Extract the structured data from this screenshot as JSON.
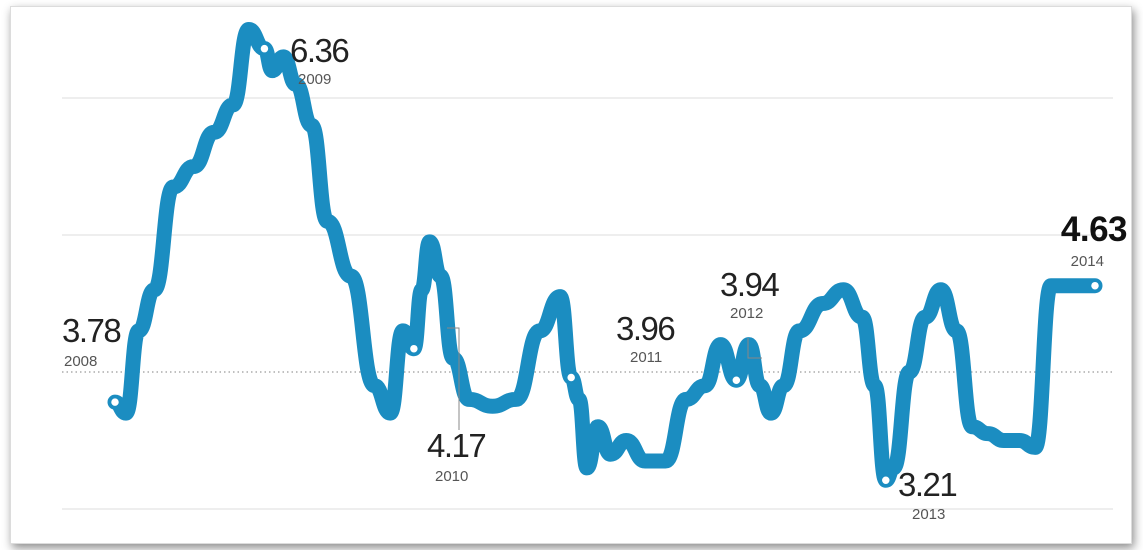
{
  "colors": {
    "line": "#1b8dc1",
    "grid": "#e3e3e3",
    "baseline": "#9a9a9a",
    "marker_fill": "#ffffff"
  },
  "chart_data": {
    "type": "line",
    "title": "",
    "xlabel": "",
    "ylabel": "",
    "grid": true,
    "y_gridlines": [
      6,
      5,
      3
    ],
    "reference_line": 4,
    "ylim": [
      2.5,
      6.6
    ],
    "xlim": [
      2008.0,
      2014.9
    ],
    "x": [
      2008.05,
      2008.12,
      2008.2,
      2008.3,
      2008.42,
      2008.55,
      2008.68,
      2008.8,
      2008.9,
      2009.0,
      2009.05,
      2009.12,
      2009.2,
      2009.3,
      2009.4,
      2009.55,
      2009.7,
      2009.8,
      2009.88,
      2009.95,
      2010.0,
      2010.05,
      2010.12,
      2010.2,
      2010.3,
      2010.45,
      2010.6,
      2010.75,
      2010.88,
      2010.95,
      2011.0,
      2011.05,
      2011.12,
      2011.2,
      2011.3,
      2011.42,
      2011.55,
      2011.68,
      2011.8,
      2011.9,
      2012.0,
      2012.08,
      2012.15,
      2012.22,
      2012.3,
      2012.4,
      2012.55,
      2012.68,
      2012.8,
      2012.88,
      2012.95,
      2013.0,
      2013.1,
      2013.2,
      2013.3,
      2013.4,
      2013.5,
      2013.6,
      2013.7,
      2013.8,
      2013.9,
      2014.0,
      2014.1,
      2014.2,
      2014.28
    ],
    "series": [
      {
        "values": [
          3.78,
          3.7,
          4.3,
          4.6,
          5.35,
          5.5,
          5.75,
          5.95,
          6.5,
          6.36,
          6.2,
          6.3,
          6.1,
          5.8,
          5.1,
          4.7,
          3.9,
          3.7,
          4.3,
          4.17,
          4.6,
          4.95,
          4.7,
          4.1,
          3.8,
          3.75,
          3.8,
          4.3,
          4.55,
          3.96,
          3.8,
          3.3,
          3.6,
          3.4,
          3.5,
          3.35,
          3.35,
          3.8,
          3.9,
          4.2,
          3.94,
          4.2,
          3.9,
          3.7,
          3.9,
          4.3,
          4.5,
          4.6,
          4.4,
          3.9,
          3.21,
          3.3,
          4.0,
          4.4,
          4.6,
          4.3,
          3.6,
          3.55,
          3.5,
          3.5,
          3.45,
          4.63,
          4.63,
          4.63,
          4.63
        ]
      }
    ],
    "annotations": [
      {
        "value": "3.78",
        "year": "2008"
      },
      {
        "value": "6.36",
        "year": "2009"
      },
      {
        "value": "4.17",
        "year": "2010"
      },
      {
        "value": "3.96",
        "year": "2011"
      },
      {
        "value": "3.94",
        "year": "2012"
      },
      {
        "value": "3.21",
        "year": "2013"
      },
      {
        "value": "4.63",
        "year": "2014"
      }
    ]
  }
}
